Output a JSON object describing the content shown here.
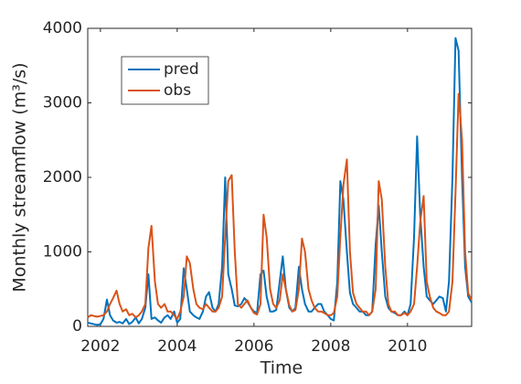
{
  "chart_data": {
    "type": "line",
    "x_label": "Time",
    "y_label": "Monthly streamflow (m³/s)",
    "x": [
      2001.67,
      2001.75,
      2001.83,
      2001.92,
      2002.0,
      2002.08,
      2002.17,
      2002.25,
      2002.33,
      2002.42,
      2002.5,
      2002.58,
      2002.67,
      2002.75,
      2002.83,
      2002.92,
      2003.0,
      2003.08,
      2003.17,
      2003.25,
      2003.33,
      2003.42,
      2003.5,
      2003.58,
      2003.67,
      2003.75,
      2003.83,
      2003.92,
      2004.0,
      2004.08,
      2004.17,
      2004.25,
      2004.33,
      2004.42,
      2004.5,
      2004.58,
      2004.67,
      2004.75,
      2004.83,
      2004.92,
      2005.0,
      2005.08,
      2005.17,
      2005.25,
      2005.33,
      2005.42,
      2005.5,
      2005.58,
      2005.67,
      2005.75,
      2005.83,
      2005.92,
      2006.0,
      2006.08,
      2006.17,
      2006.25,
      2006.33,
      2006.42,
      2006.5,
      2006.58,
      2006.67,
      2006.75,
      2006.83,
      2006.92,
      2007.0,
      2007.08,
      2007.17,
      2007.25,
      2007.33,
      2007.42,
      2007.5,
      2007.58,
      2007.67,
      2007.75,
      2007.83,
      2007.92,
      2008.0,
      2008.08,
      2008.17,
      2008.25,
      2008.33,
      2008.42,
      2008.5,
      2008.58,
      2008.67,
      2008.75,
      2008.83,
      2008.92,
      2009.0,
      2009.08,
      2009.17,
      2009.25,
      2009.33,
      2009.42,
      2009.5,
      2009.58,
      2009.67,
      2009.75,
      2009.83,
      2009.92,
      2010.0,
      2010.08,
      2010.17,
      2010.25,
      2010.33,
      2010.42,
      2010.5,
      2010.58,
      2010.67,
      2010.75,
      2010.83,
      2010.92,
      2011.0,
      2011.08,
      2011.17,
      2011.25,
      2011.33,
      2011.42,
      2011.5,
      2011.58,
      2011.67
    ],
    "series": [
      {
        "name": "pred",
        "color": "#0072BD",
        "values": [
          50,
          40,
          30,
          20,
          30,
          100,
          360,
          150,
          80,
          50,
          60,
          40,
          100,
          30,
          60,
          120,
          40,
          100,
          250,
          700,
          100,
          120,
          80,
          50,
          120,
          150,
          100,
          200,
          50,
          100,
          780,
          500,
          200,
          150,
          120,
          100,
          200,
          400,
          460,
          250,
          200,
          300,
          800,
          2000,
          700,
          500,
          280,
          270,
          300,
          380,
          330,
          250,
          200,
          180,
          700,
          750,
          400,
          200,
          200,
          220,
          600,
          940,
          500,
          250,
          200,
          250,
          800,
          500,
          300,
          200,
          200,
          250,
          300,
          300,
          200,
          150,
          100,
          80,
          600,
          1950,
          1700,
          1000,
          450,
          300,
          250,
          200,
          200,
          150,
          150,
          200,
          1100,
          1620,
          1000,
          400,
          250,
          200,
          180,
          150,
          150,
          200,
          150,
          300,
          1200,
          2550,
          1500,
          800,
          400,
          350,
          300,
          350,
          400,
          380,
          200,
          600,
          2000,
          3870,
          3700,
          2000,
          800,
          400,
          320
        ]
      },
      {
        "name": "obs",
        "color": "#D95319",
        "values": [
          120,
          150,
          140,
          130,
          140,
          150,
          200,
          300,
          380,
          480,
          300,
          200,
          230,
          150,
          170,
          120,
          150,
          200,
          300,
          1050,
          1350,
          600,
          300,
          250,
          300,
          200,
          200,
          150,
          100,
          200,
          400,
          940,
          850,
          500,
          300,
          250,
          230,
          300,
          250,
          200,
          200,
          250,
          400,
          1200,
          1950,
          2030,
          1000,
          300,
          250,
          300,
          350,
          250,
          180,
          160,
          300,
          1500,
          1200,
          500,
          300,
          250,
          350,
          700,
          500,
          280,
          200,
          220,
          500,
          1180,
          1000,
          500,
          350,
          250,
          200,
          200,
          180,
          150,
          150,
          180,
          400,
          1200,
          1900,
          2240,
          1000,
          450,
          300,
          250,
          200,
          200,
          150,
          200,
          500,
          1950,
          1700,
          800,
          300,
          200,
          200,
          150,
          150,
          180,
          150,
          200,
          300,
          800,
          1400,
          1750,
          600,
          400,
          250,
          200,
          180,
          150,
          150,
          200,
          600,
          1800,
          3120,
          2500,
          1000,
          450,
          350
        ]
      }
    ],
    "xlim": [
      2001.67,
      2011.67
    ],
    "xticks": [
      2002,
      2004,
      2006,
      2008,
      2010
    ],
    "ylim": [
      0,
      4000
    ],
    "yticks": [
      0,
      1000,
      2000,
      3000,
      4000
    ],
    "legend": "upper left"
  }
}
